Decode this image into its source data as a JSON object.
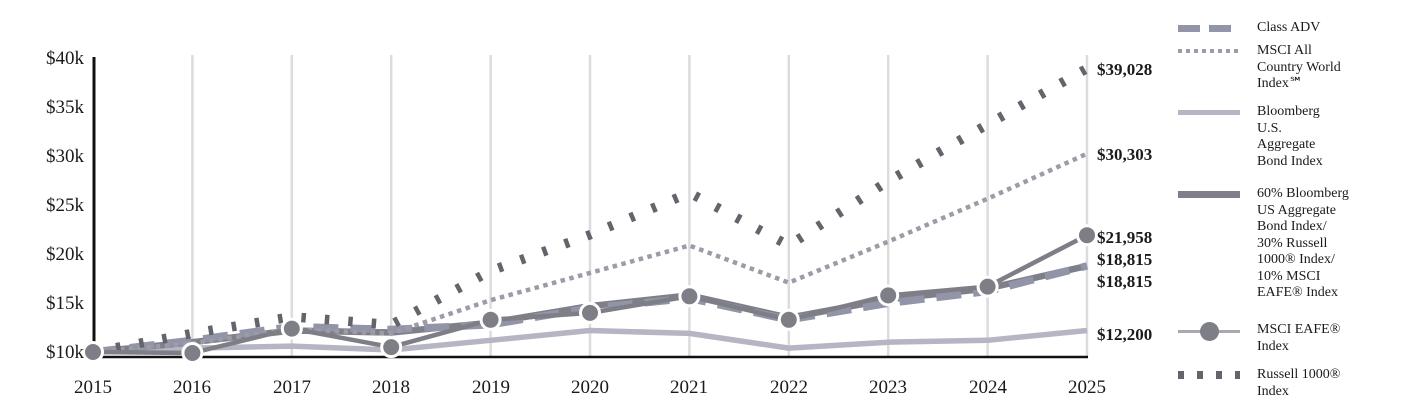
{
  "chart_data": {
    "type": "line",
    "title": "",
    "x": [
      2015,
      2016,
      2017,
      2018,
      2019,
      2020,
      2021,
      2022,
      2023,
      2024,
      2025
    ],
    "x_labels": [
      "2015",
      "2016",
      "2017",
      "2018",
      "2019",
      "2020",
      "2021",
      "2022",
      "2023",
      "2024",
      "2025"
    ],
    "ylim": [
      10000,
      40000
    ],
    "ytick_values": [
      40000,
      35000,
      30000,
      25000,
      20000,
      15000,
      10000
    ],
    "ytick_labels": [
      "$40k",
      "$35k",
      "$30k",
      "$25k",
      "$20k",
      "$15k",
      "$10k"
    ],
    "grid": "vertical-only",
    "legend_position": "right",
    "draw_order": [
      2,
      3,
      0,
      1,
      5,
      4
    ],
    "series": [
      {
        "id": "class-adv",
        "name": "Class ADV",
        "style": "dash-thick",
        "color": "#9294a7",
        "values": [
          10000,
          11200,
          12600,
          12300,
          12800,
          14500,
          15500,
          13300,
          15000,
          16200,
          18815
        ],
        "end_label": "$18,815"
      },
      {
        "id": "msci-acwi",
        "name": "MSCI All Country World Index℠",
        "style": "dot-small",
        "color": "#9c9ca6",
        "values": [
          10000,
          10900,
          12300,
          11900,
          15300,
          18100,
          20900,
          17100,
          21300,
          25700,
          30303
        ],
        "end_label": "$30,303"
      },
      {
        "id": "bloomberg-agg",
        "name": "Bloomberg U.S. Aggregate Bond Index",
        "style": "solid-light",
        "color": "#b5b5c4",
        "values": [
          10000,
          10400,
          10600,
          10200,
          11200,
          12200,
          11900,
          10400,
          11000,
          11200,
          12200
        ],
        "end_label": "$12,200"
      },
      {
        "id": "blend-60-30-10",
        "name": "60% Bloomberg US Aggregate Bond Index/30% Russell 1000® Index/10% MSCI EAFE® Index",
        "style": "solid-dark",
        "color": "#7f7f8a",
        "values": [
          10000,
          11000,
          12200,
          12000,
          13000,
          14700,
          15800,
          13500,
          15400,
          16500,
          18815
        ],
        "end_label": "$18,815"
      },
      {
        "id": "msci-eafe",
        "name": "MSCI EAFE® Index",
        "style": "solid-marker",
        "color": "#7e7e86",
        "values": [
          10000,
          9900,
          12400,
          10500,
          13300,
          14000,
          15700,
          13300,
          15800,
          16700,
          21958
        ],
        "end_label": "$21,958"
      },
      {
        "id": "russell-1000",
        "name": "Russell 1000® Index",
        "style": "dot-large",
        "color": "#64646c",
        "values": [
          10000,
          11900,
          13600,
          12800,
          18300,
          22000,
          26300,
          20900,
          27500,
          33300,
          39028
        ],
        "end_label": "$39,028"
      }
    ]
  },
  "legend": {
    "items": [
      {
        "lines": [
          "Class ADV"
        ]
      },
      {
        "lines": [
          "MSCI All",
          "Country World",
          "Index℠"
        ]
      },
      {
        "lines": [
          "Bloomberg",
          "U.S.",
          "Aggregate",
          "Bond Index"
        ]
      },
      {
        "lines": [
          "60% Bloomberg",
          "US Aggregate",
          "Bond Index/",
          "30% Russell",
          "1000® Index/",
          "10% MSCI",
          "EAFE® Index"
        ]
      },
      {
        "lines": [
          "MSCI EAFE®",
          "Index"
        ]
      },
      {
        "lines": [
          "Russell 1000®",
          "Index"
        ]
      }
    ]
  }
}
